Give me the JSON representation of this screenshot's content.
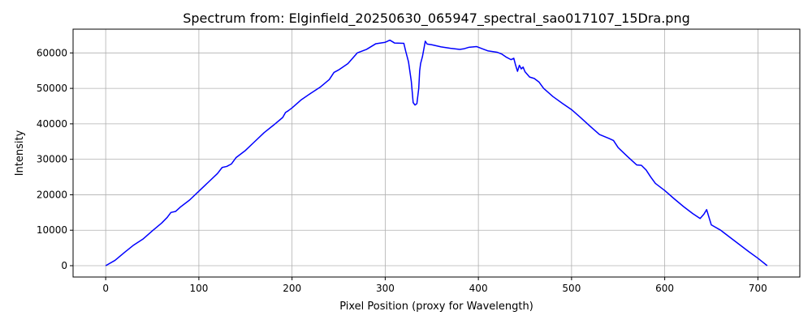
{
  "chart_data": {
    "type": "line",
    "title": "Spectrum from: Elginfield_20250630_065947_spectral_sao017107_15Dra.png",
    "xlabel": "Pixel Position (proxy for Wavelength)",
    "ylabel": "Intensity",
    "xlim": [
      -35,
      745
    ],
    "ylim": [
      -3200,
      66700
    ],
    "xticks": [
      0,
      100,
      200,
      300,
      400,
      500,
      600,
      700
    ],
    "yticks": [
      0,
      10000,
      20000,
      30000,
      40000,
      50000,
      60000
    ],
    "grid": true,
    "series": [
      {
        "color": "#0000ff",
        "x": [
          0,
          10,
          20,
          30,
          40,
          50,
          60,
          66,
          70,
          75,
          80,
          90,
          100,
          110,
          120,
          125,
          130,
          135,
          140,
          150,
          160,
          170,
          180,
          190,
          193,
          196,
          200,
          210,
          220,
          230,
          240,
          245,
          250,
          260,
          270,
          280,
          290,
          300,
          305,
          310,
          320,
          322,
          325,
          328,
          330,
          332,
          334,
          336,
          337,
          338,
          340,
          343,
          345,
          350,
          360,
          370,
          380,
          385,
          390,
          398,
          405,
          410,
          420,
          425,
          430,
          435,
          438,
          440,
          442,
          444,
          446,
          448,
          450,
          455,
          460,
          465,
          470,
          480,
          490,
          500,
          510,
          520,
          530,
          540,
          545,
          550,
          560,
          570,
          575,
          580,
          585,
          590,
          600,
          610,
          620,
          630,
          638,
          642,
          645,
          648,
          650,
          660,
          670,
          680,
          690,
          700,
          710
        ],
        "values": [
          0,
          1500,
          3700,
          5800,
          7500,
          9800,
          12000,
          13600,
          15000,
          15300,
          16500,
          18500,
          21000,
          23500,
          26000,
          27700,
          28000,
          28700,
          30500,
          32500,
          35000,
          37500,
          39600,
          41800,
          43200,
          43700,
          44500,
          46800,
          48600,
          50300,
          52500,
          54500,
          55200,
          57000,
          60000,
          61000,
          62600,
          63000,
          63600,
          62800,
          62700,
          60500,
          57500,
          52000,
          46000,
          45300,
          45700,
          50000,
          55000,
          57000,
          59000,
          63300,
          62500,
          62300,
          61700,
          61300,
          61000,
          61200,
          61600,
          61800,
          61100,
          60600,
          60200,
          59700,
          58800,
          58100,
          58500,
          56500,
          54800,
          56500,
          55500,
          56000,
          54700,
          53200,
          52800,
          51800,
          50000,
          47700,
          45800,
          44000,
          41700,
          39300,
          37000,
          35900,
          35300,
          33300,
          30800,
          28400,
          28300,
          27000,
          25000,
          23200,
          21200,
          18900,
          16700,
          14700,
          13300,
          14500,
          15800,
          13200,
          11500,
          10000,
          8000,
          6000,
          4000,
          2100,
          0
        ]
      }
    ]
  }
}
